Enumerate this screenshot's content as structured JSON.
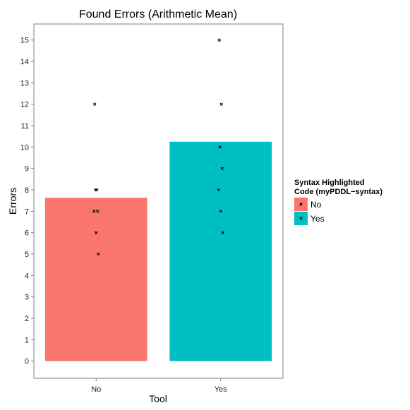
{
  "chart_data": {
    "type": "bar",
    "title": "Found Errors (Arithmetic Mean)",
    "xlabel": "Tool",
    "ylabel": "Errors",
    "categories": [
      "No",
      "Yes"
    ],
    "values": [
      7.63,
      10.25
    ],
    "ylim": [
      -0.8,
      15.75
    ],
    "yticks": [
      0,
      1,
      2,
      3,
      4,
      5,
      6,
      7,
      8,
      9,
      10,
      11,
      12,
      13,
      14,
      15
    ],
    "grid": false,
    "points": [
      {
        "category": "No",
        "values": [
          12,
          8,
          8,
          7,
          7,
          6,
          5
        ]
      },
      {
        "category": "Yes",
        "values": [
          15,
          12,
          10,
          9,
          8,
          7,
          6
        ]
      }
    ],
    "legend": {
      "title_lines": [
        "Syntax Highlighted",
        "Code (myPDDL−syntax)"
      ],
      "entries": [
        {
          "label": "No",
          "color": "#F8766D"
        },
        {
          "label": "Yes",
          "color": "#00BFC4"
        }
      ],
      "position": "right"
    },
    "colors": {
      "No": "#F8766D",
      "Yes": "#00BFC4"
    }
  }
}
